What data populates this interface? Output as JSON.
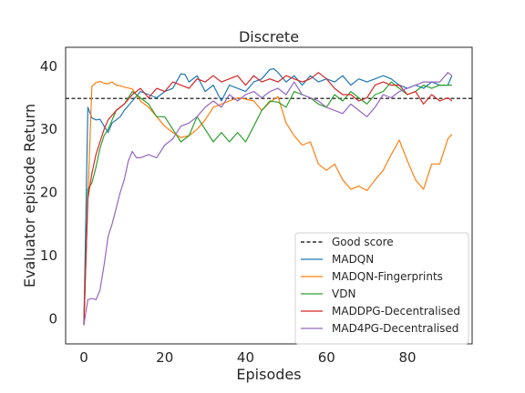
{
  "chart_data": {
    "type": "line",
    "title": "Discrete",
    "xlabel": "Episodes",
    "ylabel": "Evaluator episode Return",
    "xlim": [
      -4.5,
      96
    ],
    "ylim": [
      -4,
      43
    ],
    "xticks": [
      0,
      20,
      40,
      60,
      80
    ],
    "yticks": [
      0,
      10,
      20,
      30,
      40
    ],
    "grid": false,
    "legend_position": "lower right",
    "reference_line": {
      "name": "Good score",
      "y": 34.9,
      "color": "#000000",
      "style": "dashed"
    },
    "series": [
      {
        "name": "MADQN",
        "color": "#1f77b4",
        "x": [
          0,
          1,
          2,
          3,
          4,
          5,
          6,
          7,
          8,
          9,
          10,
          12,
          14,
          16,
          18,
          20,
          22,
          24,
          25,
          26,
          28,
          30,
          32,
          34,
          36,
          38,
          40,
          42,
          44,
          46,
          47,
          48,
          50,
          52,
          54,
          56,
          58,
          60,
          62,
          64,
          66,
          68,
          70,
          72,
          74,
          76,
          78,
          80,
          82,
          84,
          86,
          88,
          90,
          91
        ],
        "y": [
          -1,
          33.5,
          31.8,
          31.5,
          31.6,
          30.5,
          29.5,
          31,
          31.5,
          32,
          33,
          34.5,
          36,
          35.5,
          35,
          36,
          36.5,
          38.8,
          38.7,
          37.5,
          38.5,
          36,
          37,
          34.5,
          37,
          36.5,
          36,
          37.5,
          38,
          39.5,
          39.6,
          39,
          37.5,
          38.5,
          37,
          38.5,
          37.5,
          38,
          37.5,
          38.5,
          37,
          38,
          37.5,
          38,
          38.5,
          38,
          37,
          36.5,
          37,
          36.5,
          37.5,
          37,
          37,
          38.5
        ]
      },
      {
        "name": "MADQN-Fingerprints",
        "color": "#ff7f0e",
        "x": [
          0,
          1,
          2,
          3,
          4,
          5,
          6,
          7,
          8,
          9,
          10,
          12,
          14,
          16,
          18,
          20,
          22,
          24,
          26,
          28,
          30,
          32,
          34,
          36,
          38,
          40,
          42,
          44,
          46,
          48,
          50,
          52,
          54,
          56,
          58,
          60,
          62,
          64,
          66,
          68,
          70,
          72,
          74,
          76,
          78,
          80,
          82,
          84,
          86,
          88,
          90,
          91
        ],
        "y": [
          -1,
          19,
          36.8,
          37.4,
          37.6,
          37.3,
          37.2,
          37.5,
          37,
          36.9,
          36.7,
          36.4,
          34.5,
          33.5,
          32,
          30.5,
          29.5,
          28.7,
          29,
          30,
          31.5,
          33.5,
          34,
          34.5,
          35,
          34.8,
          34.5,
          33,
          34.3,
          35.2,
          31,
          29,
          27.5,
          28,
          24.5,
          23.5,
          24.5,
          22,
          20.5,
          21,
          20.3,
          22,
          23.5,
          26,
          28.3,
          25,
          22,
          20.5,
          24.5,
          24.5,
          28.5,
          29.2
        ]
      },
      {
        "name": "VDN",
        "color": "#2ca02c",
        "x": [
          0,
          1,
          2,
          3,
          4,
          5,
          6,
          8,
          10,
          12,
          14,
          16,
          18,
          20,
          22,
          24,
          26,
          28,
          30,
          32,
          34,
          36,
          38,
          40,
          42,
          44,
          46,
          48,
          50,
          52,
          54,
          56,
          58,
          60,
          62,
          64,
          66,
          68,
          70,
          72,
          74,
          76,
          78,
          80,
          82,
          84,
          86,
          88,
          90,
          91
        ],
        "y": [
          -1,
          20.5,
          21.5,
          24,
          27,
          29,
          30,
          33,
          34,
          36,
          35,
          34,
          32,
          32,
          30,
          28,
          29,
          32,
          30,
          28,
          29.5,
          28,
          29.5,
          28,
          30.5,
          33,
          34.5,
          34.3,
          33.5,
          36,
          35.5,
          35,
          34,
          33.5,
          35.5,
          34.5,
          36,
          35,
          34,
          35.5,
          36,
          37.5,
          36.5,
          35.5,
          36,
          37,
          36.5,
          37,
          37,
          37
        ]
      },
      {
        "name": "MADDPG-Decentralised",
        "color": "#d62728",
        "x": [
          0,
          1,
          2,
          3,
          4,
          5,
          6,
          8,
          10,
          12,
          14,
          16,
          18,
          20,
          22,
          24,
          26,
          28,
          30,
          32,
          34,
          36,
          38,
          40,
          42,
          44,
          46,
          48,
          50,
          52,
          54,
          56,
          58,
          60,
          62,
          64,
          66,
          68,
          70,
          72,
          74,
          76,
          78,
          80,
          82,
          84,
          86,
          88,
          90,
          91
        ],
        "y": [
          -1,
          19,
          23,
          26,
          28,
          30,
          31.5,
          33,
          34,
          35.5,
          36.5,
          35,
          36.5,
          36,
          37.5,
          37,
          36.5,
          38,
          37.5,
          38.5,
          37.5,
          38,
          38.5,
          37,
          38.5,
          37.5,
          38,
          37.5,
          38.5,
          38,
          37.5,
          38,
          39,
          38,
          36.5,
          35.5,
          35.5,
          34.5,
          35,
          37,
          37.5,
          37,
          37,
          35.5,
          36,
          34,
          35.5,
          34.5,
          35,
          34.5
        ]
      },
      {
        "name": "MAD4PG-Decentralised",
        "color": "#9467bd",
        "x": [
          0,
          1,
          2,
          3,
          4,
          5,
          6,
          7,
          8,
          9,
          10,
          11,
          12,
          13,
          14,
          16,
          18,
          20,
          22,
          24,
          26,
          28,
          30,
          32,
          34,
          36,
          38,
          40,
          42,
          44,
          46,
          48,
          50,
          52,
          54,
          56,
          58,
          60,
          62,
          64,
          66,
          68,
          70,
          72,
          74,
          76,
          78,
          80,
          82,
          84,
          86,
          88,
          90,
          91
        ],
        "y": [
          -1,
          3,
          3.2,
          3,
          4.5,
          8.5,
          13,
          15,
          17.5,
          20,
          22,
          25,
          26.5,
          25.5,
          25.5,
          26,
          25.5,
          27.5,
          28.5,
          30.5,
          31,
          32,
          33.5,
          34.5,
          33.5,
          35.5,
          34.5,
          35.5,
          36,
          35,
          36,
          36.5,
          35.5,
          37.5,
          35.5,
          35,
          34.5,
          33.5,
          33,
          32.5,
          34,
          33,
          32,
          33.5,
          35.5,
          35,
          36,
          36.5,
          37,
          37.5,
          37.5,
          37.5,
          39,
          38.5
        ]
      }
    ]
  }
}
